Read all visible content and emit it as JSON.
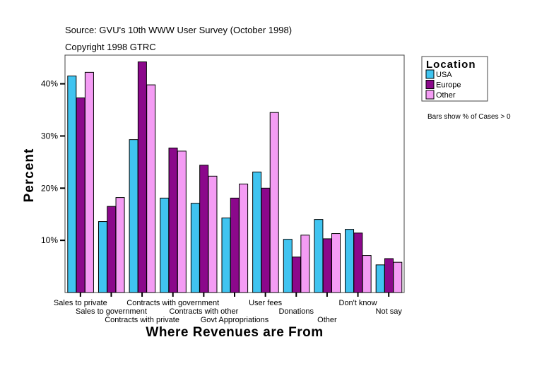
{
  "chart_data": {
    "type": "bar",
    "source": "Source: GVU's 10th WWW User Survey (October 1998)",
    "copyright": "Copyright 1998 GTRC",
    "xlabel": "Where Revenues are From",
    "ylabel": "Percent",
    "ylim": [
      0,
      45.5
    ],
    "yticks": [
      10,
      20,
      30,
      40
    ],
    "ytick_labels": [
      "10%",
      "20%",
      "30%",
      "40%"
    ],
    "grid": false,
    "legend": {
      "title": "Location",
      "placement": "top-right"
    },
    "note": "Bars show % of Cases > 0",
    "categories": [
      "Sales to private",
      "Sales to government",
      "Contracts with private",
      "Contracts with government",
      "Contracts with other",
      "Govt Appropriations",
      "User fees",
      "Donations",
      "Other",
      "Don't know",
      "Not say"
    ],
    "series": [
      {
        "name": "USA",
        "color": "#40c4f0",
        "values": [
          41.5,
          13.6,
          29.3,
          18.1,
          17.1,
          14.3,
          23.1,
          10.2,
          14.0,
          12.1,
          5.3
        ]
      },
      {
        "name": "Europe",
        "color": "#8b088b",
        "values": [
          37.3,
          16.5,
          44.2,
          27.7,
          24.4,
          18.1,
          20.0,
          6.8,
          10.3,
          11.4,
          6.5
        ]
      },
      {
        "name": "Other",
        "color": "#f49cf4",
        "values": [
          42.2,
          18.2,
          39.8,
          27.1,
          22.3,
          20.8,
          34.5,
          11.0,
          11.3,
          7.1,
          5.8
        ]
      }
    ]
  }
}
